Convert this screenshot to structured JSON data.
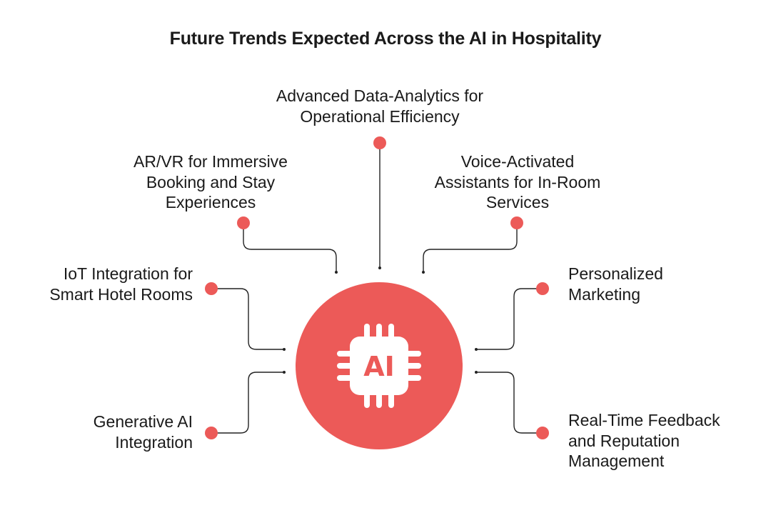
{
  "title": "Future Trends Expected Across the AI in Hospitality",
  "hub": {
    "label": "AI",
    "icon": "ai-chip-icon"
  },
  "colors": {
    "accent": "#ec5a58",
    "line": "#222222",
    "text": "#1a1a1a"
  },
  "trends": {
    "top": "Advanced Data-Analytics for\nOperational Efficiency",
    "upper_left": "AR/VR for Immersive\nBooking and Stay\nExperiences",
    "upper_right": "Voice-Activated\nAssistants for In-Room\nServices",
    "middle_left": "IoT Integration for\nSmart Hotel Rooms",
    "middle_right": "Personalized\nMarketing",
    "lower_left": "Generative AI\nIntegration",
    "lower_right": "Real-Time Feedback\nand Reputation\nManagement"
  }
}
